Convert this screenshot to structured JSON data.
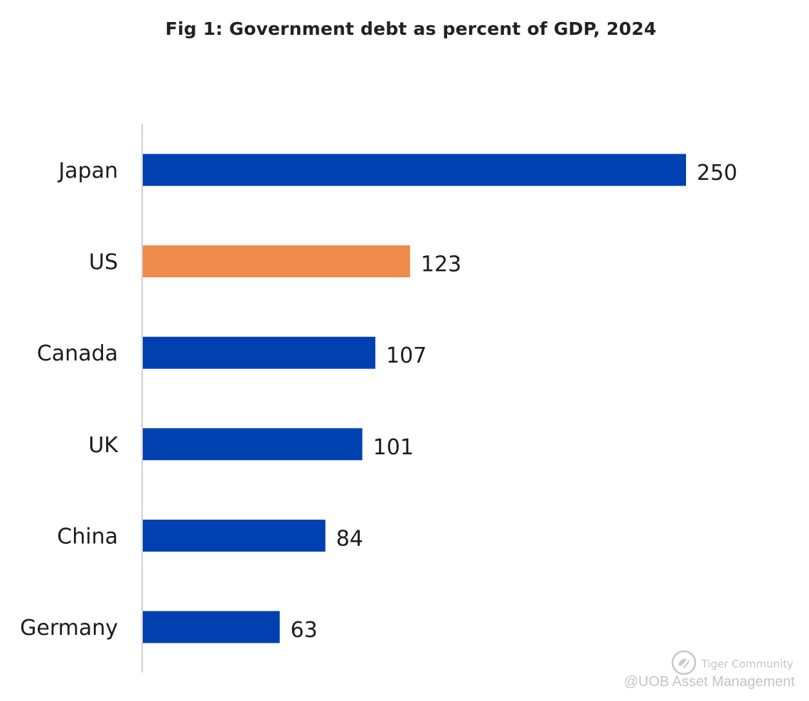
{
  "chart_data": {
    "type": "bar",
    "orientation": "horizontal",
    "title": "Fig 1: Government debt as percent of GDP, 2024",
    "categories": [
      "Japan",
      "US",
      "Canada",
      "UK",
      "China",
      "Germany"
    ],
    "values": [
      250,
      123,
      107,
      101,
      84,
      63
    ],
    "value_labels": [
      "250",
      "123",
      "107",
      "101",
      "84",
      "63"
    ],
    "highlight_category": "US",
    "colors": {
      "default": "#0040b0",
      "highlight": "#ee8b4b",
      "axis": "#cfcfcf"
    },
    "xlabel": "",
    "ylabel": "",
    "xlim": [
      0,
      250
    ],
    "grid": false
  },
  "watermark": {
    "brand": "Tiger Community",
    "source": "@UOB Asset Management"
  }
}
